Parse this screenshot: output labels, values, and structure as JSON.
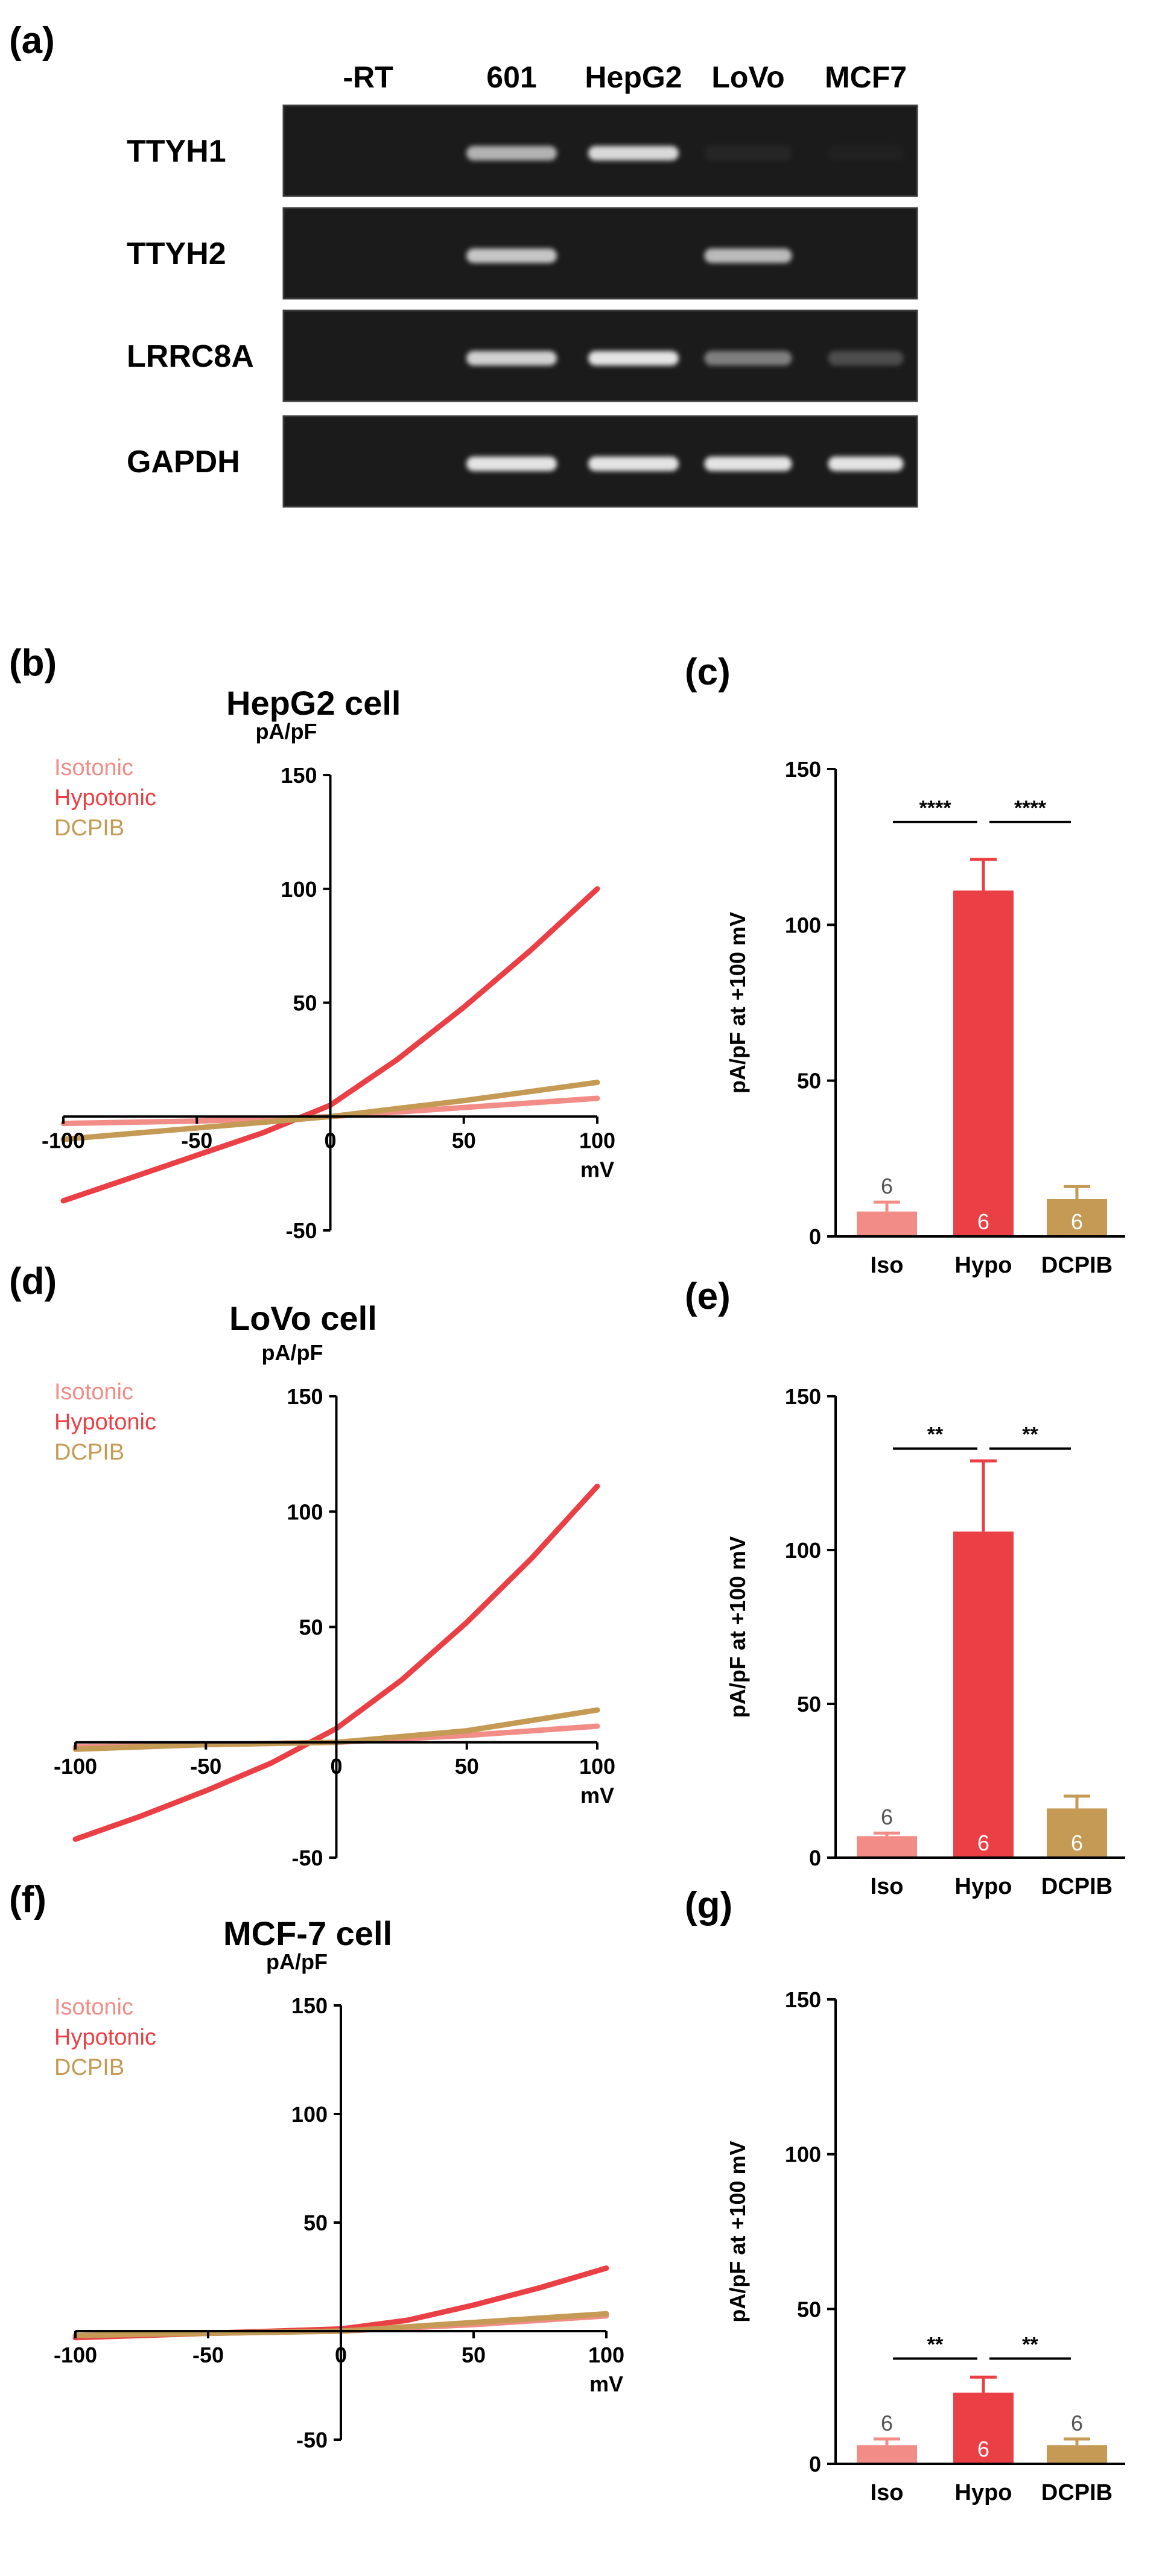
{
  "colors": {
    "isotonic": "#f28c87",
    "hypotonic": "#ea4045",
    "dcpib": "#c49a54",
    "gel_bg": "#1b1b1b",
    "band": "#e4e4e4"
  },
  "panel_a": {
    "label": "(a)",
    "lanes": [
      "-RT",
      "601",
      "HepG2",
      "LoVo",
      "MCF7"
    ],
    "genes": [
      {
        "name": "TTYH1",
        "bands": [
          0,
          0.75,
          0.95,
          0.05,
          0.03
        ]
      },
      {
        "name": "TTYH2",
        "bands": [
          0,
          0.85,
          0,
          0.8,
          0
        ]
      },
      {
        "name": "LRRC8A",
        "bands": [
          0,
          0.9,
          1.0,
          0.5,
          0.25
        ]
      },
      {
        "name": "GAPDH",
        "bands": [
          0,
          1.0,
          1.0,
          1.0,
          1.0
        ]
      }
    ]
  },
  "chart_data": [
    {
      "panel": "(b)",
      "type": "line",
      "title": "HepG2 cell",
      "xlabel": "mV",
      "ylabel": "pA/pF",
      "xlim": [
        -100,
        100
      ],
      "ylim": [
        -50,
        150
      ],
      "xticks": [
        -100,
        -50,
        0,
        50,
        100
      ],
      "yticks": [
        -50,
        50,
        100,
        150
      ],
      "legend": [
        "Isotonic",
        "Hypotonic",
        "DCPIB"
      ],
      "series": [
        {
          "name": "Isotonic",
          "x": [
            -100,
            -50,
            0,
            50,
            100
          ],
          "y": [
            -3,
            -2,
            0,
            4,
            8
          ]
        },
        {
          "name": "Hypotonic",
          "x": [
            -100,
            -75,
            -50,
            -25,
            0,
            25,
            50,
            75,
            100
          ],
          "y": [
            -37,
            -27,
            -17,
            -7,
            5,
            25,
            48,
            73,
            100
          ]
        },
        {
          "name": "DCPIB",
          "x": [
            -100,
            -50,
            0,
            50,
            100
          ],
          "y": [
            -10,
            -5,
            0,
            7,
            15
          ]
        }
      ]
    },
    {
      "panel": "(c)",
      "type": "bar",
      "ylabel": "pA/pF at +100 mV",
      "ylim": [
        0,
        150
      ],
      "yticks": [
        0,
        50,
        100,
        150
      ],
      "categories": [
        "Iso",
        "Hypo",
        "DCPIB"
      ],
      "values": [
        8,
        111,
        12
      ],
      "errors": [
        3,
        10,
        4
      ],
      "n": [
        "6",
        "6",
        "6"
      ],
      "significance": [
        {
          "from": 0,
          "to": 1,
          "label": "****",
          "y": 133
        },
        {
          "from": 1,
          "to": 2,
          "label": "****",
          "y": 133
        }
      ]
    },
    {
      "panel": "(d)",
      "type": "line",
      "title": "LoVo cell",
      "xlabel": "mV",
      "ylabel": "pA/pF",
      "xlim": [
        -100,
        100
      ],
      "ylim": [
        -50,
        150
      ],
      "xticks": [
        -100,
        -50,
        0,
        50,
        100
      ],
      "yticks": [
        -50,
        50,
        100,
        150
      ],
      "legend": [
        "Isotonic",
        "Hypotonic",
        "DCPIB"
      ],
      "series": [
        {
          "name": "Isotonic",
          "x": [
            -100,
            -50,
            0,
            50,
            100
          ],
          "y": [
            -2,
            -1,
            0,
            3,
            7
          ]
        },
        {
          "name": "Hypotonic",
          "x": [
            -100,
            -75,
            -50,
            -25,
            0,
            25,
            50,
            75,
            100
          ],
          "y": [
            -42,
            -32,
            -21,
            -9,
            6,
            27,
            52,
            80,
            111
          ]
        },
        {
          "name": "DCPIB",
          "x": [
            -100,
            -50,
            0,
            50,
            100
          ],
          "y": [
            -3,
            -1,
            0,
            5,
            14
          ]
        }
      ]
    },
    {
      "panel": "(e)",
      "type": "bar",
      "ylabel": "pA/pF at +100 mV",
      "ylim": [
        0,
        150
      ],
      "yticks": [
        0,
        50,
        100,
        150
      ],
      "categories": [
        "Iso",
        "Hypo",
        "DCPIB"
      ],
      "values": [
        7,
        106,
        16
      ],
      "errors": [
        1,
        23,
        4
      ],
      "n": [
        "6",
        "6",
        "6"
      ],
      "significance": [
        {
          "from": 0,
          "to": 1,
          "label": "**",
          "y": 133
        },
        {
          "from": 1,
          "to": 2,
          "label": "**",
          "y": 133
        }
      ]
    },
    {
      "panel": "(f)",
      "type": "line",
      "title": "MCF-7 cell",
      "xlabel": "mV",
      "ylabel": "pA/pF",
      "xlim": [
        -100,
        100
      ],
      "ylim": [
        -50,
        150
      ],
      "xticks": [
        -100,
        -50,
        0,
        50,
        100
      ],
      "yticks": [
        -50,
        50,
        100,
        150
      ],
      "legend": [
        "Isotonic",
        "Hypotonic",
        "DCPIB"
      ],
      "series": [
        {
          "name": "Isotonic",
          "x": [
            -100,
            -50,
            0,
            50,
            100
          ],
          "y": [
            -2,
            -1,
            0,
            3,
            7
          ]
        },
        {
          "name": "Hypotonic",
          "x": [
            -100,
            -50,
            0,
            25,
            50,
            75,
            100
          ],
          "y": [
            -3,
            -1,
            1,
            5,
            12,
            20,
            29
          ]
        },
        {
          "name": "DCPIB",
          "x": [
            -100,
            -50,
            0,
            50,
            100
          ],
          "y": [
            -2,
            -1,
            0,
            4,
            8
          ]
        }
      ]
    },
    {
      "panel": "(g)",
      "type": "bar",
      "ylabel": "pA/pF at +100 mV",
      "ylim": [
        0,
        150
      ],
      "yticks": [
        0,
        50,
        100,
        150
      ],
      "categories": [
        "Iso",
        "Hypo",
        "DCPIB"
      ],
      "values": [
        6,
        23,
        6
      ],
      "errors": [
        2,
        5,
        2
      ],
      "n": [
        "6",
        "6",
        "6"
      ],
      "significance": [
        {
          "from": 0,
          "to": 1,
          "label": "**",
          "y": 34
        },
        {
          "from": 1,
          "to": 2,
          "label": "**",
          "y": 34
        }
      ]
    }
  ]
}
